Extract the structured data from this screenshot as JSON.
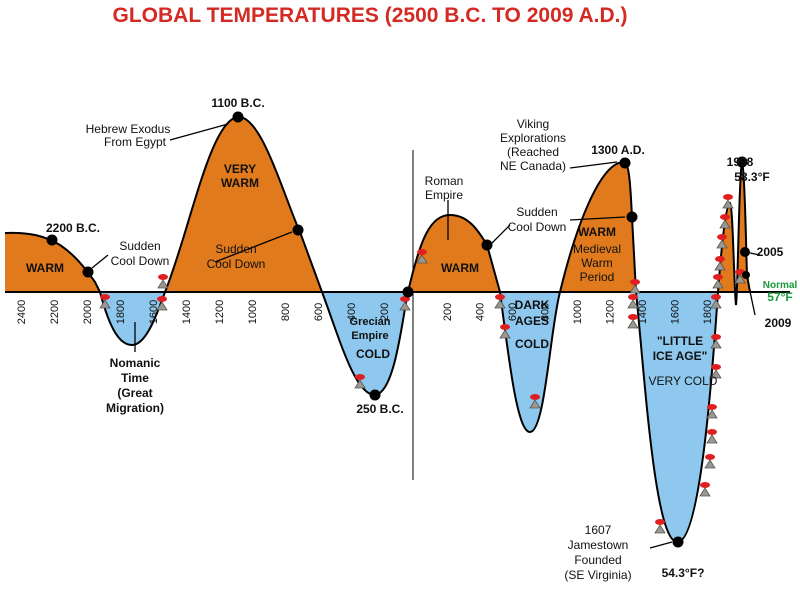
{
  "title": "GLOBAL TEMPERATURES (2500 B.C. TO 2009 A.D.)",
  "axis": {
    "bc_ticks": [
      "2400",
      "2200",
      "2000",
      "1800",
      "1600",
      "1400",
      "1200",
      "1000",
      "800",
      "600",
      "400",
      "200"
    ],
    "ad_ticks": [
      "200",
      "400",
      "600",
      "800",
      "1000",
      "1200",
      "1400",
      "1600",
      "1800"
    ]
  },
  "annotations": [
    {
      "lines": [
        "2200 B.C."
      ]
    },
    {
      "lines": [
        "WARM"
      ]
    },
    {
      "lines": [
        "Sudden",
        "Cool Down"
      ]
    },
    {
      "lines": [
        "Nomanic",
        "Time",
        "(Great",
        "Migration)"
      ]
    },
    {
      "lines": [
        "1100 B.C."
      ]
    },
    {
      "lines": [
        "Hebrew Exodus",
        "From Egypt"
      ]
    },
    {
      "lines": [
        "VERY",
        "WARM"
      ]
    },
    {
      "lines": [
        "Sudden",
        "Cool Down"
      ]
    },
    {
      "lines": [
        "Grecian",
        "Empire",
        "COLD"
      ]
    },
    {
      "lines": [
        "250 B.C."
      ]
    },
    {
      "lines": [
        "Roman",
        "Empire"
      ]
    },
    {
      "lines": [
        "WARM"
      ]
    },
    {
      "lines": [
        "Sudden",
        "Cool Down"
      ]
    },
    {
      "lines": [
        "DARK",
        "AGES",
        "COLD"
      ]
    },
    {
      "lines": [
        "Viking",
        "Explorations",
        "(Reached",
        "NE Canada)"
      ]
    },
    {
      "lines": [
        "1300 A.D."
      ]
    },
    {
      "lines": [
        "WARM"
      ]
    },
    {
      "lines": [
        "Medieval",
        "Warm",
        "Period"
      ]
    },
    {
      "lines": [
        "\"LITTLE",
        "ICE AGE\""
      ]
    },
    {
      "lines": [
        "VERY COLD"
      ]
    },
    {
      "lines": [
        "1607",
        "Jamestown",
        "Founded",
        "(SE Virginia)"
      ]
    },
    {
      "lines": [
        "54.3°F?"
      ]
    },
    {
      "lines": [
        "1998",
        "58.3°F"
      ]
    },
    {
      "lines": [
        "2005"
      ]
    },
    {
      "lines": [
        "Normal",
        "57°F"
      ]
    },
    {
      "lines": [
        "2009"
      ]
    }
  ]
}
